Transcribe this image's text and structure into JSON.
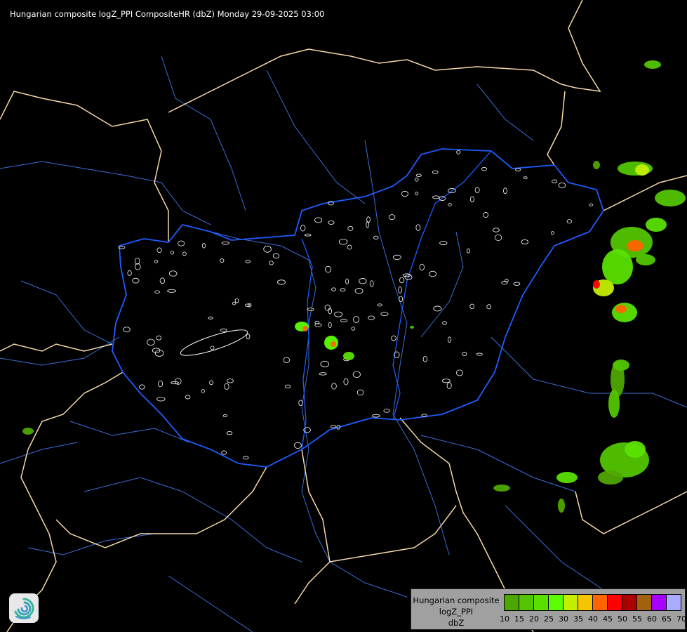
{
  "title": "Hungarian composite logZ_PPI CompositeHR (dbZ) Monday 29-09-2025 03:00",
  "legend": {
    "lines": [
      "Hungarian composite",
      "logZ_PPI",
      "dbZ"
    ],
    "ticks": [
      "10",
      "15",
      "20",
      "25",
      "30",
      "35",
      "40",
      "45",
      "50",
      "55",
      "60",
      "65",
      "70"
    ],
    "colors": [
      "#4ea600",
      "#52c400",
      "#5ae000",
      "#5cff00",
      "#c4ee00",
      "#f6c400",
      "#ff6400",
      "#ff0000",
      "#aa0000",
      "#a0620a",
      "#a800ff",
      "#aaaaff"
    ]
  },
  "map_colors": {
    "background": "#000000",
    "hungary_border": "#1e5cff",
    "country_border": "#f5d8a8",
    "rivers": "#3a6ed6",
    "county_contours": "#ffffff"
  },
  "logo": {
    "name": "met-service-swirl-logo"
  }
}
